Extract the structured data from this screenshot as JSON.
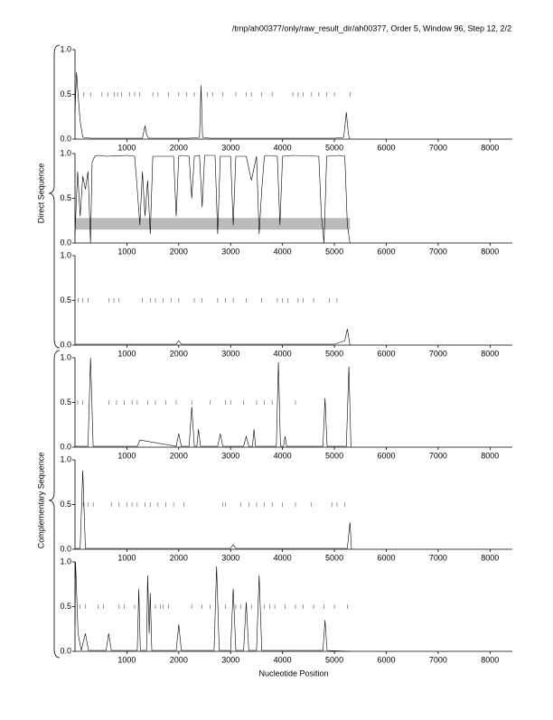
{
  "header": "/tmp/ah00377/only/raw_result_dir/ah00377, Order 5, Window 96, Step 12, 2/2",
  "groups": [
    {
      "label": "Direct Sequence"
    },
    {
      "label": "Complementary Sequence"
    }
  ],
  "chart_data": [
    {
      "type": "line",
      "color": "#000000",
      "xlim": [
        0,
        8430
      ],
      "ylim": [
        0,
        1
      ],
      "xticks": [
        1000,
        2000,
        3000,
        4000,
        5000,
        6000,
        7000,
        8000
      ],
      "yticks": [
        {
          "value": 0,
          "label": "0.0"
        },
        0.5,
        {
          "value": 1,
          "label": "1.0"
        }
      ],
      "x": [
        0,
        30,
        60,
        100,
        150,
        300,
        600,
        1000,
        1300,
        1350,
        1380,
        1420,
        1800,
        2200,
        2400,
        2430,
        2460,
        2600,
        3000,
        3500,
        4000,
        4500,
        5000,
        5180,
        5230,
        5270,
        5300
      ],
      "values": [
        0.3,
        0.75,
        0.5,
        0.2,
        0.02,
        0.01,
        0.01,
        0.01,
        0.01,
        0.15,
        0.05,
        0.01,
        0.01,
        0.01,
        0.02,
        0.6,
        0.02,
        0.01,
        0.01,
        0.01,
        0.01,
        0.01,
        0.01,
        0.02,
        0.3,
        0.05,
        0.0
      ],
      "stop_codons": [
        170,
        300,
        520,
        640,
        760,
        820,
        900,
        1050,
        1150,
        1250,
        1500,
        1600,
        1800,
        2000,
        2150,
        2300,
        2550,
        2650,
        2850,
        3100,
        3300,
        3400,
        3600,
        3800,
        4200,
        4300,
        4400,
        4550,
        4700,
        4850,
        5000,
        5300
      ]
    },
    {
      "type": "line",
      "color": "#000000",
      "xlim": [
        0,
        8430
      ],
      "ylim": [
        0,
        1
      ],
      "xticks": [
        1000,
        2000,
        3000,
        4000,
        5000,
        6000,
        7000,
        8000
      ],
      "yticks": [
        {
          "value": 0,
          "label": "0.0"
        },
        0.5,
        {
          "value": 1,
          "label": "1.0"
        }
      ],
      "x": [
        0,
        50,
        100,
        150,
        200,
        250,
        300,
        330,
        380,
        450,
        600,
        1000,
        1150,
        1200,
        1250,
        1300,
        1350,
        1400,
        1450,
        1500,
        1900,
        1950,
        2000,
        2050,
        2200,
        2250,
        2300,
        2400,
        2450,
        2500,
        2700,
        2750,
        2800,
        3000,
        3050,
        3100,
        3300,
        3400,
        3500,
        3550,
        3600,
        3650,
        3700,
        3900,
        3950,
        4000,
        4200,
        4700,
        4750,
        4800,
        4850,
        5100,
        5200,
        5250,
        5300
      ],
      "values": [
        0.1,
        0.8,
        0.3,
        0.75,
        0.6,
        0.8,
        0.0,
        0.9,
        0.97,
        0.98,
        0.97,
        0.98,
        0.97,
        0.6,
        0.2,
        0.8,
        0.3,
        0.7,
        0.1,
        0.97,
        0.97,
        0.3,
        0.97,
        0.98,
        0.97,
        0.5,
        0.97,
        0.98,
        0.4,
        0.98,
        0.98,
        0.1,
        0.97,
        0.97,
        0.2,
        0.97,
        0.97,
        0.7,
        0.97,
        0.1,
        0.6,
        0.97,
        0.98,
        0.97,
        0.2,
        0.97,
        0.98,
        0.97,
        0.3,
        0.0,
        0.97,
        0.98,
        0.97,
        0.2,
        0.0
      ],
      "highlight": {
        "x": [
          0,
          5300
        ],
        "y": [
          0.15,
          0.28
        ],
        "color": "#bbbbbb"
      }
    },
    {
      "type": "line",
      "color": "#000000",
      "xlim": [
        0,
        8430
      ],
      "ylim": [
        0,
        1
      ],
      "xticks": [
        1000,
        2000,
        3000,
        4000,
        5000,
        6000,
        7000,
        8000
      ],
      "yticks": [
        {
          "value": 0,
          "label": "0.0"
        },
        0.5,
        {
          "value": 1,
          "label": "1.0"
        }
      ],
      "x": [
        0,
        200,
        600,
        1000,
        1500,
        1950,
        2000,
        2050,
        2500,
        3000,
        3500,
        4000,
        4500,
        5000,
        5200,
        5250,
        5300
      ],
      "values": [
        0.01,
        0.01,
        0.01,
        0.01,
        0.01,
        0.01,
        0.05,
        0.01,
        0.01,
        0.01,
        0.01,
        0.01,
        0.01,
        0.01,
        0.05,
        0.18,
        0.0
      ],
      "stop_codons": [
        60,
        150,
        250,
        650,
        750,
        850,
        1300,
        1450,
        1550,
        1700,
        1850,
        2000,
        2300,
        2450,
        2750,
        2900,
        3050,
        3300,
        3600,
        3900,
        4000,
        4100,
        4300,
        4400,
        4600,
        4900,
        5050
      ]
    },
    {
      "type": "line",
      "color": "#000000",
      "xlim": [
        0,
        8430
      ],
      "ylim": [
        0,
        1
      ],
      "xticks": [
        1000,
        2000,
        3000,
        4000,
        5000,
        6000,
        7000,
        8000
      ],
      "yticks": [
        {
          "value": 0,
          "label": "0.0"
        },
        0.5,
        {
          "value": 1,
          "label": "1.0"
        }
      ],
      "x": [
        0,
        250,
        300,
        350,
        600,
        1200,
        1250,
        1950,
        2000,
        2050,
        2200,
        2250,
        2300,
        2350,
        2380,
        2420,
        2750,
        2800,
        2850,
        3250,
        3300,
        3350,
        3420,
        3450,
        3480,
        3880,
        3920,
        3960,
        4020,
        4050,
        4080,
        4780,
        4820,
        4860,
        5230,
        5280,
        5320
      ],
      "values": [
        0.01,
        0.01,
        1.0,
        0.01,
        0.01,
        0.01,
        0.08,
        0.01,
        0.15,
        0.01,
        0.01,
        0.45,
        0.01,
        0.01,
        0.2,
        0.01,
        0.01,
        0.15,
        0.01,
        0.01,
        0.12,
        0.01,
        0.01,
        0.2,
        0.01,
        0.01,
        0.95,
        0.01,
        0.01,
        0.12,
        0.01,
        0.01,
        0.55,
        0.01,
        0.01,
        0.9,
        0.0
      ],
      "stop_codons": [
        50,
        150,
        650,
        800,
        950,
        1100,
        1200,
        1400,
        1550,
        1750,
        1950,
        2250,
        2600,
        2900,
        3000,
        3250,
        3500,
        3650,
        3800,
        4250
      ]
    },
    {
      "type": "line",
      "color": "#000000",
      "xlim": [
        0,
        8430
      ],
      "ylim": [
        0,
        1
      ],
      "xticks": [
        1000,
        2000,
        3000,
        4000,
        5000,
        6000,
        7000,
        8000
      ],
      "yticks": [
        {
          "value": 0,
          "label": "0.0"
        },
        0.5,
        {
          "value": 1,
          "label": "1.0"
        }
      ],
      "x": [
        0,
        100,
        150,
        200,
        300,
        1000,
        2000,
        3000,
        3050,
        3100,
        4000,
        5000,
        5250,
        5300,
        5330
      ],
      "values": [
        0.01,
        0.01,
        0.88,
        0.01,
        0.01,
        0.01,
        0.01,
        0.01,
        0.05,
        0.01,
        0.01,
        0.01,
        0.01,
        0.3,
        0.0
      ],
      "stop_codons": [
        160,
        250,
        350,
        700,
        850,
        1000,
        1100,
        1200,
        1350,
        1450,
        1600,
        1750,
        1900,
        2100,
        2850,
        2900,
        3200,
        3350,
        3500,
        3650,
        3800,
        4000,
        4250,
        4550,
        4950,
        5050,
        5200
      ]
    },
    {
      "type": "line",
      "color": "#000000",
      "xlim": [
        0,
        8430
      ],
      "ylim": [
        0,
        1
      ],
      "xticks": [
        1000,
        2000,
        3000,
        4000,
        5000,
        6000,
        7000,
        8000
      ],
      "yticks": [
        {
          "value": 0,
          "label": "0.0"
        },
        0.5,
        {
          "value": 1,
          "label": "1.0"
        }
      ],
      "x": [
        0,
        10,
        60,
        120,
        200,
        260,
        320,
        600,
        650,
        700,
        1200,
        1230,
        1260,
        1380,
        1400,
        1430,
        1450,
        1480,
        1950,
        2000,
        2050,
        2680,
        2730,
        2780,
        3000,
        3050,
        3100,
        3250,
        3300,
        3350,
        3500,
        3550,
        3600,
        4780,
        4820,
        4860,
        5300
      ],
      "values": [
        0.3,
        1.0,
        0.2,
        0.01,
        0.2,
        0.01,
        0.01,
        0.01,
        0.2,
        0.01,
        0.01,
        0.7,
        0.01,
        0.01,
        0.85,
        0.2,
        0.65,
        0.01,
        0.01,
        0.3,
        0.01,
        0.01,
        0.95,
        0.01,
        0.01,
        0.7,
        0.01,
        0.01,
        0.55,
        0.01,
        0.01,
        0.85,
        0.01,
        0.01,
        0.35,
        0.01,
        0.0
      ],
      "stop_codons": [
        100,
        200,
        450,
        550,
        850,
        950,
        1150,
        1550,
        1650,
        1700,
        1800,
        2250,
        2450,
        2600,
        2900,
        3100,
        3200,
        3400,
        3650,
        3750,
        3850,
        4050,
        4250,
        4400,
        4600,
        4800,
        5000,
        5250
      ]
    },
    {
      "type": "axis-label",
      "xlabel": "Nucleotide Position"
    }
  ]
}
